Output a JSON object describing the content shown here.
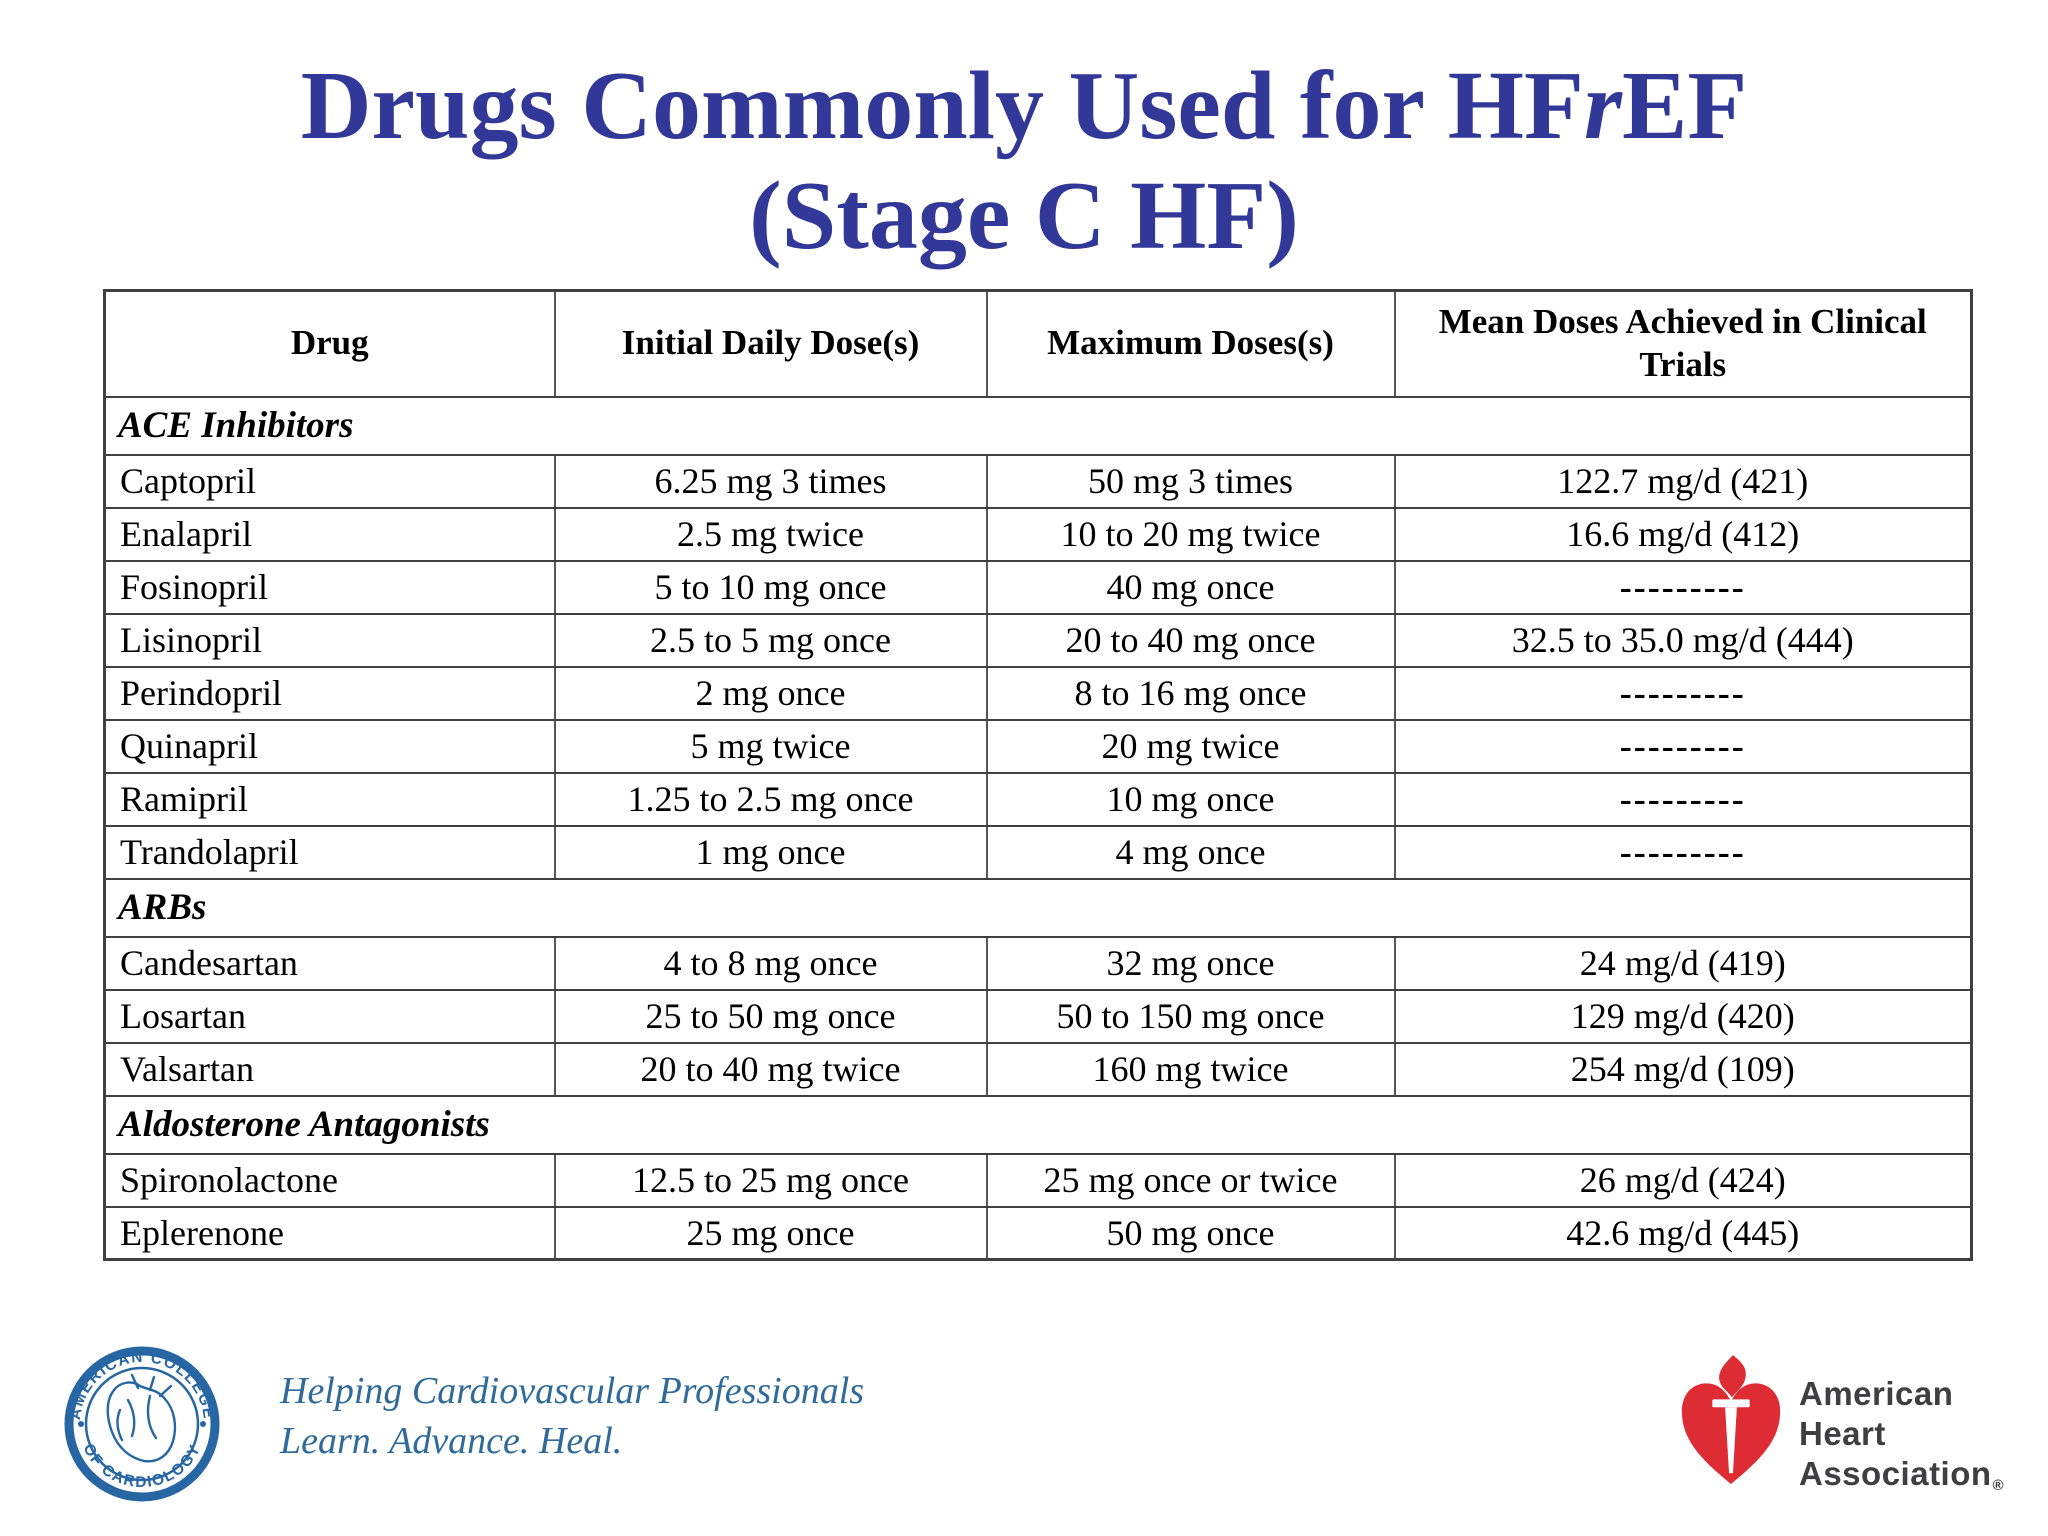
{
  "slide": {
    "title_pre": "Drugs Commonly Used for HF",
    "title_italic": "r",
    "title_post": "EF",
    "subtitle": "(Stage C HF)",
    "title_color": "#323898"
  },
  "table": {
    "columns": [
      "Drug",
      "Initial Daily Dose(s)",
      "Maximum Doses(s)",
      "Mean Doses Achieved in Clinical Trials"
    ],
    "sections": [
      {
        "label": "ACE Inhibitors",
        "rows": [
          [
            "Captopril",
            "6.25 mg 3 times",
            "50 mg 3 times",
            "122.7 mg/d (421)"
          ],
          [
            "Enalapril",
            "2.5 mg twice",
            "10 to 20 mg twice",
            "16.6 mg/d (412)"
          ],
          [
            "Fosinopril",
            "5 to 10 mg once",
            "40 mg once",
            "---------"
          ],
          [
            "Lisinopril",
            "2.5 to 5 mg once",
            "20 to 40 mg once",
            "32.5 to 35.0 mg/d (444)"
          ],
          [
            "Perindopril",
            "2 mg once",
            "8 to 16 mg once",
            "---------"
          ],
          [
            "Quinapril",
            "5 mg twice",
            "20 mg twice",
            "---------"
          ],
          [
            "Ramipril",
            "1.25 to 2.5 mg once",
            "10 mg once",
            "---------"
          ],
          [
            "Trandolapril",
            "1 mg once",
            "4 mg once",
            "---------"
          ]
        ]
      },
      {
        "label": "ARBs",
        "rows": [
          [
            "Candesartan",
            "4 to 8 mg once",
            "32 mg once",
            "24 mg/d (419)"
          ],
          [
            "Losartan",
            "25 to 50 mg once",
            "50 to 150 mg once",
            "129 mg/d (420)"
          ],
          [
            "Valsartan",
            "20 to 40 mg twice",
            "160 mg twice",
            "254 mg/d (109)"
          ]
        ]
      },
      {
        "label": "Aldosterone Antagonists",
        "rows": [
          [
            "Spironolactone",
            "12.5 to 25 mg once",
            "25 mg once or twice",
            "26 mg/d (424)"
          ],
          [
            "Eplerenone",
            "25 mg once",
            "50 mg once",
            "42.6 mg/d (445)"
          ]
        ]
      }
    ]
  },
  "footer": {
    "acc": {
      "seal_top_text": "AMERICAN COLLEGE",
      "seal_bottom_text": "OF CARDIOLOGY",
      "tagline_line1": "Helping Cardiovascular Professionals",
      "tagline_line2": "Learn. Advance. Heal.",
      "color": "#2766A3"
    },
    "aha": {
      "line1": "American",
      "line2": "Heart",
      "line3": "Association",
      "registered": "®",
      "heart_color": "#DD2C34",
      "text_color": "#3f3f41"
    }
  }
}
